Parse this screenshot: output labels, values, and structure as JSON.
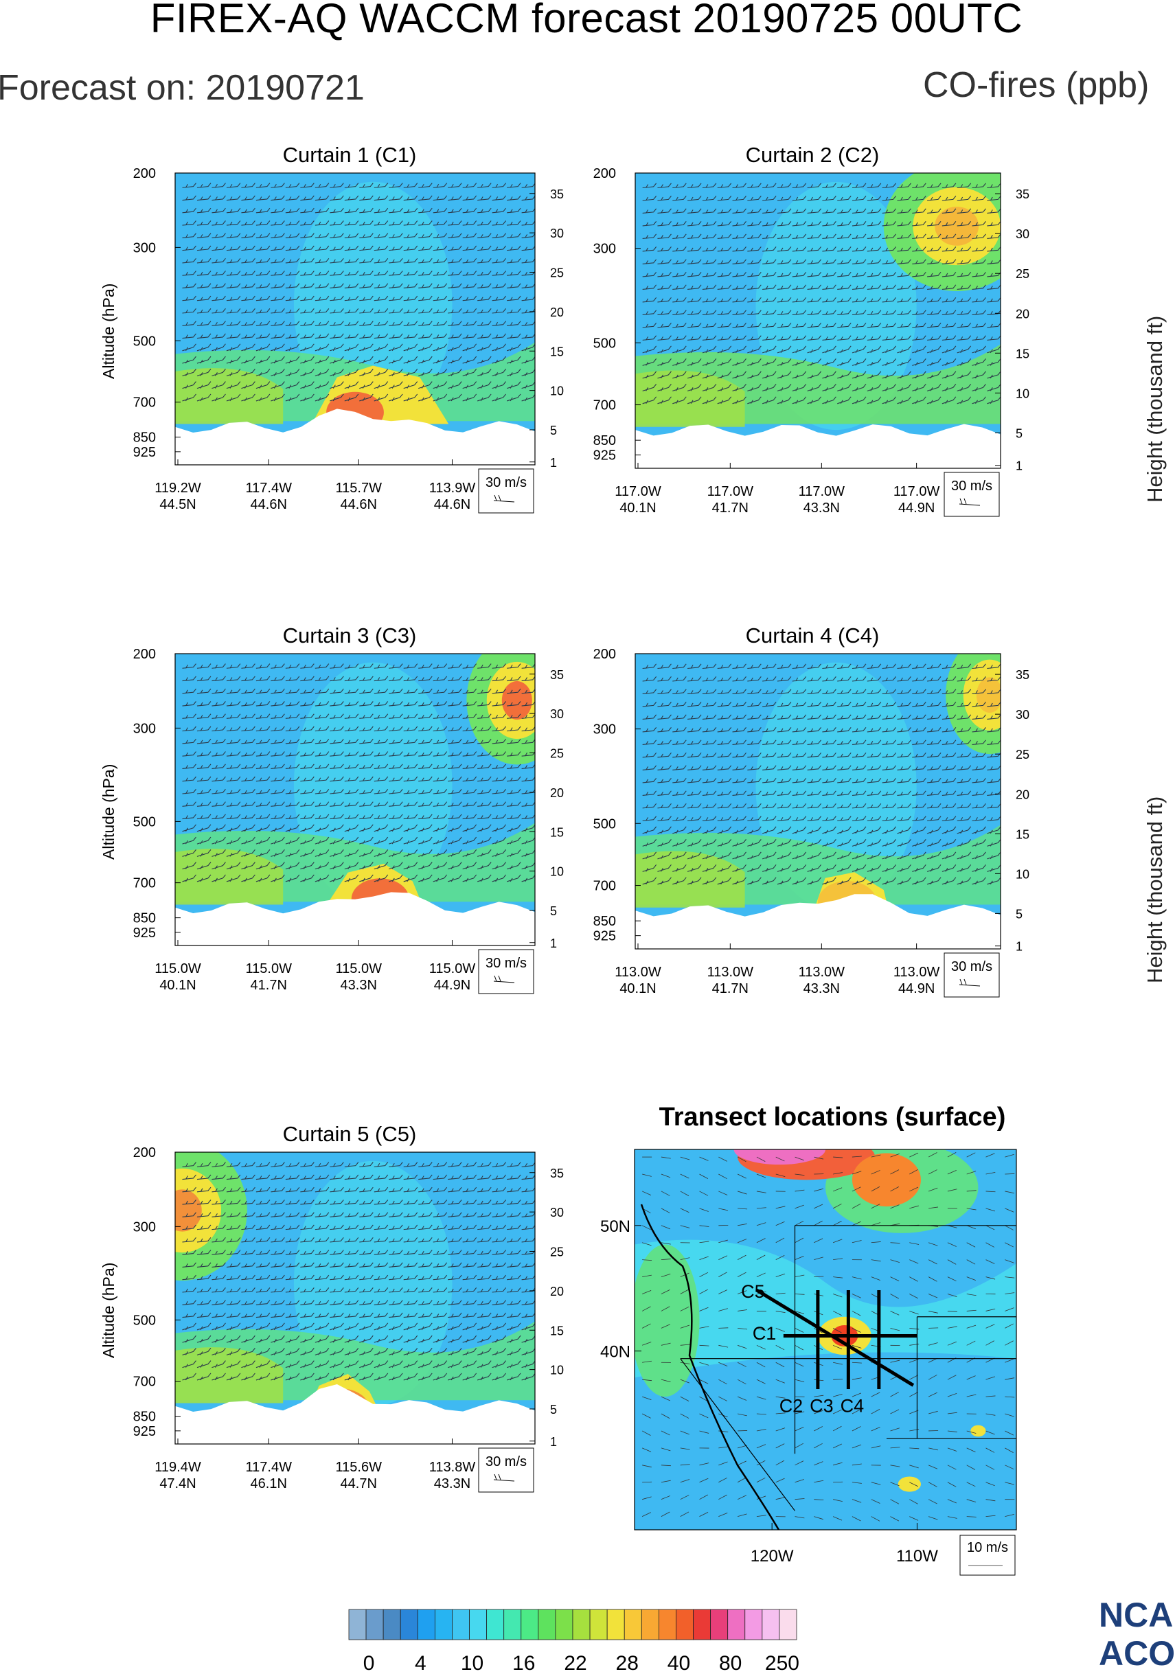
{
  "header": {
    "title": "FIREX-AQ WACCM forecast 20190725 00UTC",
    "forecast_on": "Forecast on: 20190721",
    "species": "CO-fires (ppb)"
  },
  "side_labels": {
    "height_label": "Height (thousand ft)"
  },
  "logo": {
    "line1": "NCA",
    "line2": "ACO"
  },
  "chart_data": [
    {
      "type": "heatmap",
      "title": "Curtain 1 (C1)",
      "ylabel": "Altitude (hPa)",
      "y2label": "Height (thousand ft)",
      "yticks": [
        "200",
        "300",
        "500",
        "700",
        "850",
        "925"
      ],
      "y2ticks": [
        "35",
        "30",
        "25",
        "20",
        "15",
        "10",
        "5",
        "1"
      ],
      "xticks": [
        [
          "119.2W",
          "44.5N"
        ],
        [
          "117.4W",
          "44.6N"
        ],
        [
          "115.7W",
          "44.6N"
        ],
        [
          "113.9W",
          "44.6N"
        ]
      ],
      "ref_vector": "30 m/s",
      "colors": {
        "background": "#3fb9f2",
        "band_low": "#5fe08a",
        "plume": "#f26f3a"
      }
    },
    {
      "type": "heatmap",
      "title": "Curtain 2 (C2)",
      "yticks": [
        "200",
        "300",
        "500",
        "700",
        "850",
        "925"
      ],
      "y2ticks": [
        "35",
        "30",
        "25",
        "20",
        "15",
        "10",
        "5",
        "1"
      ],
      "xticks": [
        [
          "117.0W",
          "40.1N"
        ],
        [
          "117.0W",
          "41.7N"
        ],
        [
          "117.0W",
          "43.3N"
        ],
        [
          "117.0W",
          "44.9N"
        ]
      ],
      "ref_vector": "30 m/s",
      "colors": {
        "background": "#3fb9f2",
        "band_low": "#6ee26a",
        "plume": "#f5b83a"
      }
    },
    {
      "type": "heatmap",
      "title": "Curtain 3 (C3)",
      "ylabel": "Altitude (hPa)",
      "y2label": "Height (thousand ft)",
      "yticks": [
        "200",
        "300",
        "500",
        "700",
        "850",
        "925"
      ],
      "y2ticks": [
        "35",
        "30",
        "25",
        "20",
        "15",
        "10",
        "5",
        "1"
      ],
      "xticks": [
        [
          "115.0W",
          "40.1N"
        ],
        [
          "115.0W",
          "41.7N"
        ],
        [
          "115.0W",
          "43.3N"
        ],
        [
          "115.0W",
          "44.9N"
        ]
      ],
      "ref_vector": "30 m/s",
      "colors": {
        "background": "#3fb9f2",
        "band_low": "#5fe08a",
        "plume": "#f26f3a"
      }
    },
    {
      "type": "heatmap",
      "title": "Curtain 4 (C4)",
      "yticks": [
        "200",
        "300",
        "500",
        "700",
        "850",
        "925"
      ],
      "y2ticks": [
        "35",
        "30",
        "25",
        "20",
        "15",
        "10",
        "5",
        "1"
      ],
      "xticks": [
        [
          "113.0W",
          "40.1N"
        ],
        [
          "113.0W",
          "41.7N"
        ],
        [
          "113.0W",
          "43.3N"
        ],
        [
          "113.0W",
          "44.9N"
        ]
      ],
      "ref_vector": "30 m/s",
      "colors": {
        "background": "#3fb9f2",
        "band_low": "#5fe08a",
        "plume": "#f5c23a"
      }
    },
    {
      "type": "heatmap",
      "title": "Curtain 5 (C5)",
      "ylabel": "Altitude (hPa)",
      "yticks": [
        "200",
        "300",
        "500",
        "700",
        "850",
        "925"
      ],
      "y2ticks": [
        "35",
        "30",
        "25",
        "20",
        "15",
        "10",
        "5",
        "1"
      ],
      "xticks": [
        [
          "119.4W",
          "47.4N"
        ],
        [
          "117.4W",
          "46.1N"
        ],
        [
          "115.6W",
          "44.7N"
        ],
        [
          "113.8W",
          "43.3N"
        ]
      ],
      "ref_vector": "30 m/s",
      "colors": {
        "background": "#3fb9f2",
        "band_low": "#5fe08a",
        "plume": "#f2903a"
      }
    },
    {
      "type": "heatmap",
      "title": "Transect locations (surface)",
      "xticks": [
        "120W",
        "110W"
      ],
      "yticks": [
        "50N",
        "40N"
      ],
      "ref_vector": "10 m/s",
      "transects": [
        "C1",
        "C2",
        "C3",
        "C4",
        "C5"
      ],
      "colors": {
        "background": "#3fc8e8",
        "plume": "#f04020",
        "transect_line": "#000000"
      }
    }
  ],
  "colorbar": {
    "labels": [
      "0",
      "4",
      "10",
      "16",
      "22",
      "28",
      "40",
      "80",
      "250"
    ],
    "colors": [
      "#8fb4d6",
      "#6a9ccc",
      "#4a8ac4",
      "#2a86d9",
      "#1fa0f0",
      "#27b4f2",
      "#3fc6f2",
      "#47d8ef",
      "#3fe6d2",
      "#44e8b0",
      "#4cea86",
      "#5ee25e",
      "#7ce04a",
      "#a6e03e",
      "#cfe43a",
      "#f2e23a",
      "#f8c838",
      "#f8a833",
      "#f7862e",
      "#f2602a",
      "#ea3a36",
      "#e83f7a",
      "#ee6fc2",
      "#f39be4",
      "#f6c0f0",
      "#fadcec"
    ]
  }
}
